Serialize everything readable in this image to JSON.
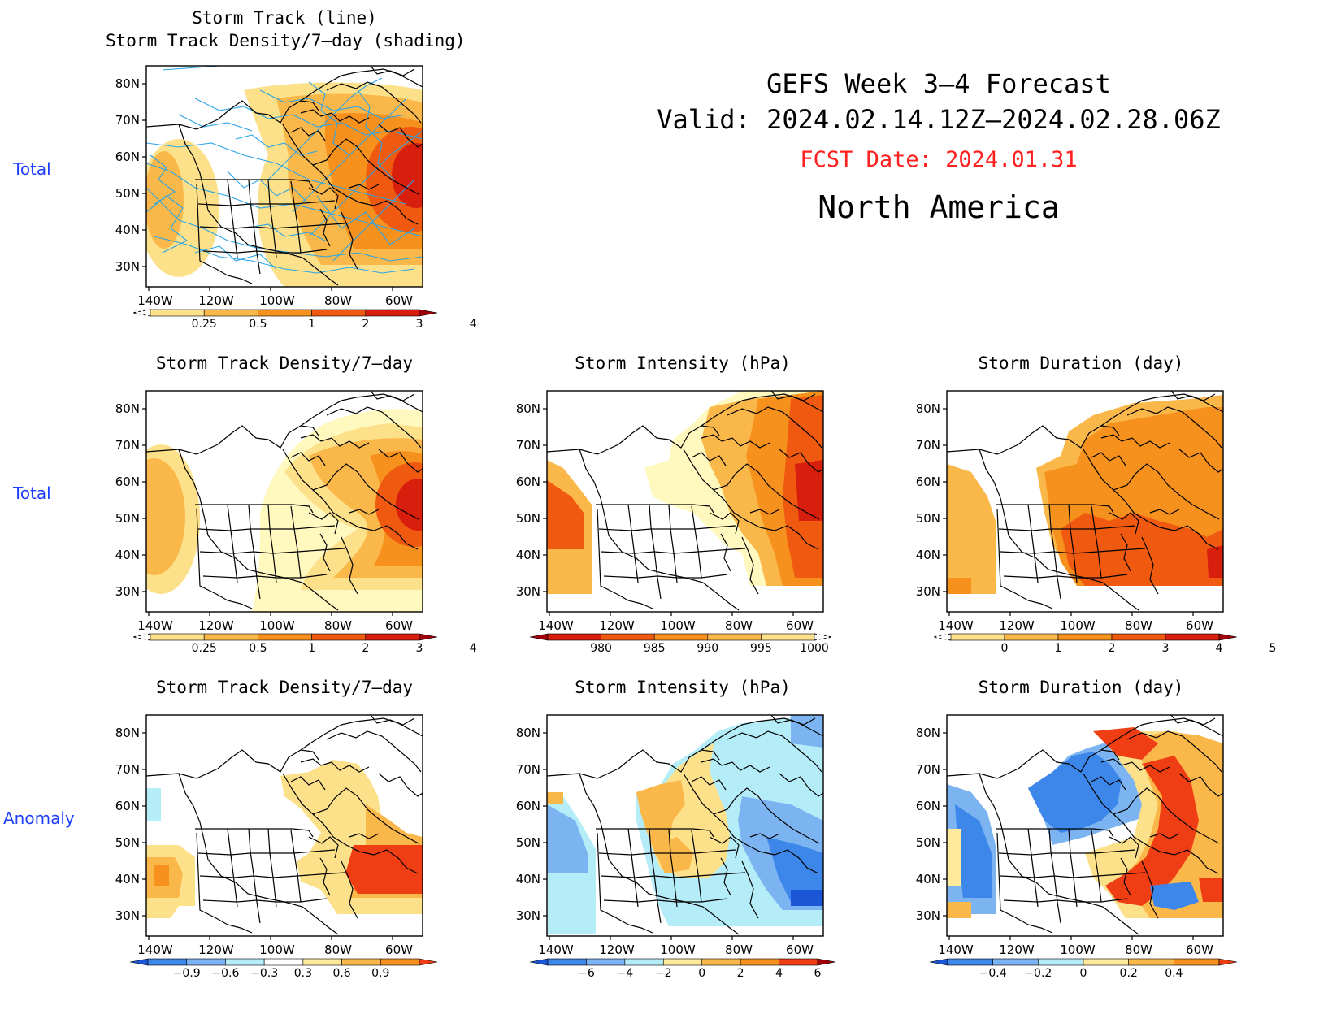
{
  "header": {
    "line1": "GEFS Week 3–4 Forecast",
    "line2": "Valid: 2024.02.14.12Z–2024.02.28.06Z",
    "fcst": "FCST Date: 2024.01.31",
    "region": "North America",
    "fcst_color": "#ff2020"
  },
  "row_labels": {
    "r1": "Total",
    "r2": "Total",
    "r3": "Anomaly"
  },
  "panels": {
    "p1": {
      "title_a": "Storm Track (line)",
      "title_b": "Storm Track Density/7–day (shading)"
    },
    "p2": {
      "title": "Storm Track Density/7–day"
    },
    "p3": {
      "title": "Storm Intensity (hPa)"
    },
    "p4": {
      "title": "Storm Duration (day)"
    },
    "p5": {
      "title": "Storm Track Density/7–day"
    },
    "p6": {
      "title": "Storm Intensity (hPa)"
    },
    "p7": {
      "title": "Storm Duration (day)"
    }
  },
  "axes": {
    "lat_labels": [
      "80N",
      "70N",
      "60N",
      "50N",
      "40N",
      "30N"
    ],
    "lon_labels": [
      "140W",
      "120W",
      "100W",
      "80W",
      "60W"
    ]
  },
  "colorbars": {
    "density_total": {
      "labels": [
        "0.25",
        "0.5",
        "1",
        "2",
        "3",
        "4"
      ],
      "colors": [
        "#fff9c0",
        "#fde18a",
        "#fbb84a",
        "#f7911e",
        "#ef5a10",
        "#d81e0c",
        "#a0000a"
      ]
    },
    "intensity_total": {
      "labels": [
        "980",
        "985",
        "990",
        "995",
        "1000"
      ],
      "colors": [
        "#a0000a",
        "#d81e0c",
        "#ef5a10",
        "#f7911e",
        "#fbb84a",
        "#fde18a",
        "#fff9c0"
      ]
    },
    "duration_total": {
      "labels": [
        "0",
        "1",
        "2",
        "3",
        "4",
        "5"
      ],
      "colors": [
        "#fff9c0",
        "#fde18a",
        "#fbb84a",
        "#f7911e",
        "#ef5a10",
        "#d81e0c",
        "#a0000a"
      ]
    },
    "density_anom": {
      "labels": [
        "−0.9",
        "−0.6",
        "−0.3",
        "0.3",
        "0.6",
        "0.9"
      ],
      "colors": [
        "#1a56d6",
        "#3d86ea",
        "#7cb4f2",
        "#b4ecf8",
        "#ffffff",
        "#fdea9a",
        "#fbb84a",
        "#f7911e",
        "#ef3e14"
      ]
    },
    "intensity_anom": {
      "labels": [
        "−6",
        "−4",
        "−2",
        "0",
        "2",
        "4",
        "6"
      ],
      "colors": [
        "#1a56d6",
        "#3d86ea",
        "#7cb4f2",
        "#b4ecf8",
        "#fdea9a",
        "#fbb84a",
        "#f7911e",
        "#ef3e14",
        "#a0000a"
      ]
    },
    "duration_anom": {
      "labels": [
        "−0.4",
        "−0.2",
        "0",
        "0.2",
        "0.4"
      ],
      "colors": [
        "#1a56d6",
        "#3d86ea",
        "#7cb4f2",
        "#b4ecf8",
        "#fdea9a",
        "#fbb84a",
        "#f7911e",
        "#ef3e14"
      ]
    }
  },
  "colors": {
    "row_label": "#1f3fff",
    "track_line": "#2aa4e6"
  }
}
